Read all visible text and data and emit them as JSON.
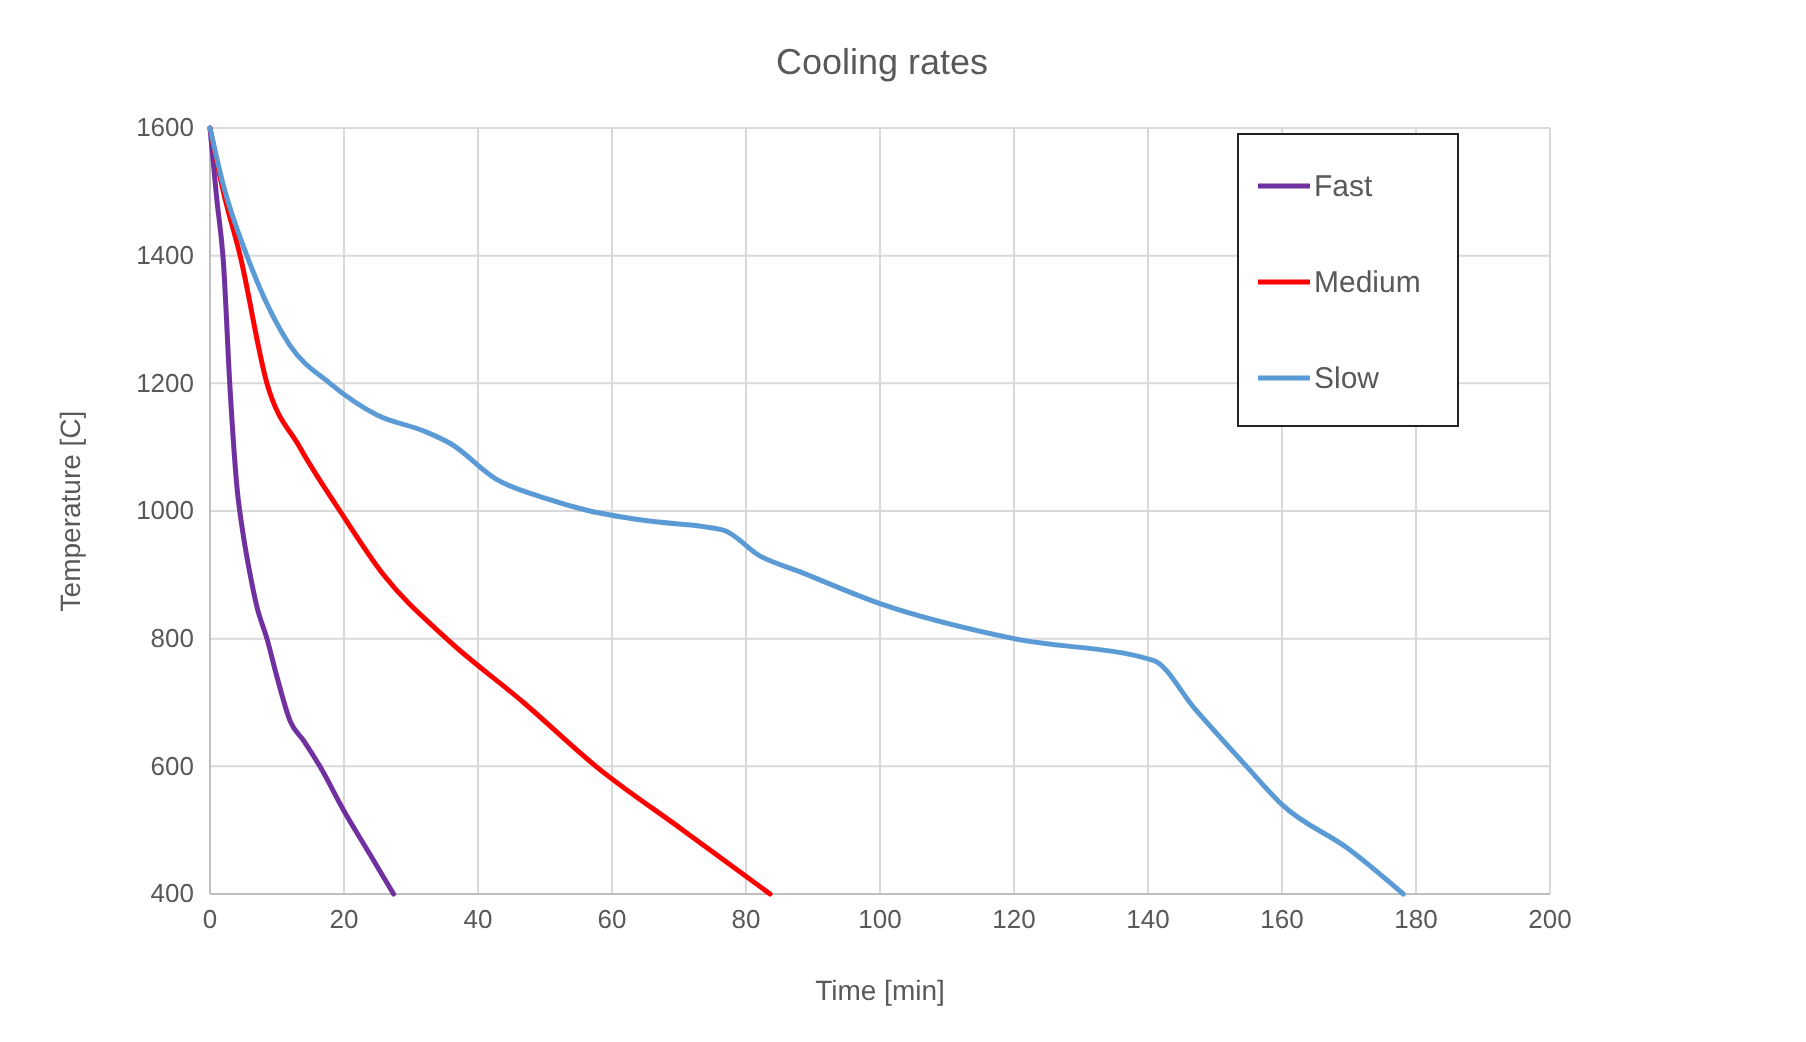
{
  "chart_data": {
    "type": "line",
    "title": "Cooling rates",
    "xlabel": "Time [min]",
    "ylabel": "Temperature [C]",
    "xlim": [
      0,
      200
    ],
    "xticks": [
      0,
      20,
      40,
      60,
      80,
      100,
      120,
      140,
      160,
      180,
      200
    ],
    "ylim": [
      400,
      1600
    ],
    "yticks": [
      400,
      600,
      800,
      1000,
      1200,
      1400,
      1600
    ],
    "grid": true,
    "legend": "top right",
    "marker": "none",
    "line_style": "solid",
    "series": [
      {
        "name": "Fast",
        "color": "#7030a0",
        "x": [
          0,
          1,
          2,
          3,
          4,
          5,
          6,
          7,
          8.5,
          10,
          12,
          14,
          16.4,
          20,
          24,
          27.4
        ],
        "values": [
          1600,
          1490,
          1390,
          1190,
          1040,
          960,
          900,
          850,
          800,
          740,
          670,
          640,
          600,
          530,
          460,
          400
        ]
      },
      {
        "name": "Medium",
        "color": "#ff0000",
        "x": [
          0,
          2,
          4.5,
          8.5,
          13.4,
          19.4,
          25.9,
          35.3,
          46.8,
          57.6,
          70.6,
          83.6
        ],
        "values": [
          1600,
          1500,
          1400,
          1200,
          1100,
          1000,
          900,
          800,
          700,
          600,
          500,
          400
        ]
      },
      {
        "name": "Slow",
        "color": "#5b9bd5",
        "x": [
          0,
          2,
          5.5,
          11.9,
          17.9,
          25,
          32,
          36,
          42.7,
          50,
          56.7,
          65,
          76.6,
          82,
          88,
          100,
          120,
          140.8,
          147,
          154.7,
          160,
          170,
          178.1
        ],
        "values": [
          1600,
          1510,
          1400,
          1260,
          1200,
          1150,
          1125,
          1105,
          1050,
          1020,
          1000,
          985,
          970,
          930,
          905,
          855,
          800,
          766,
          690,
          600,
          540,
          470,
          400
        ]
      }
    ]
  }
}
